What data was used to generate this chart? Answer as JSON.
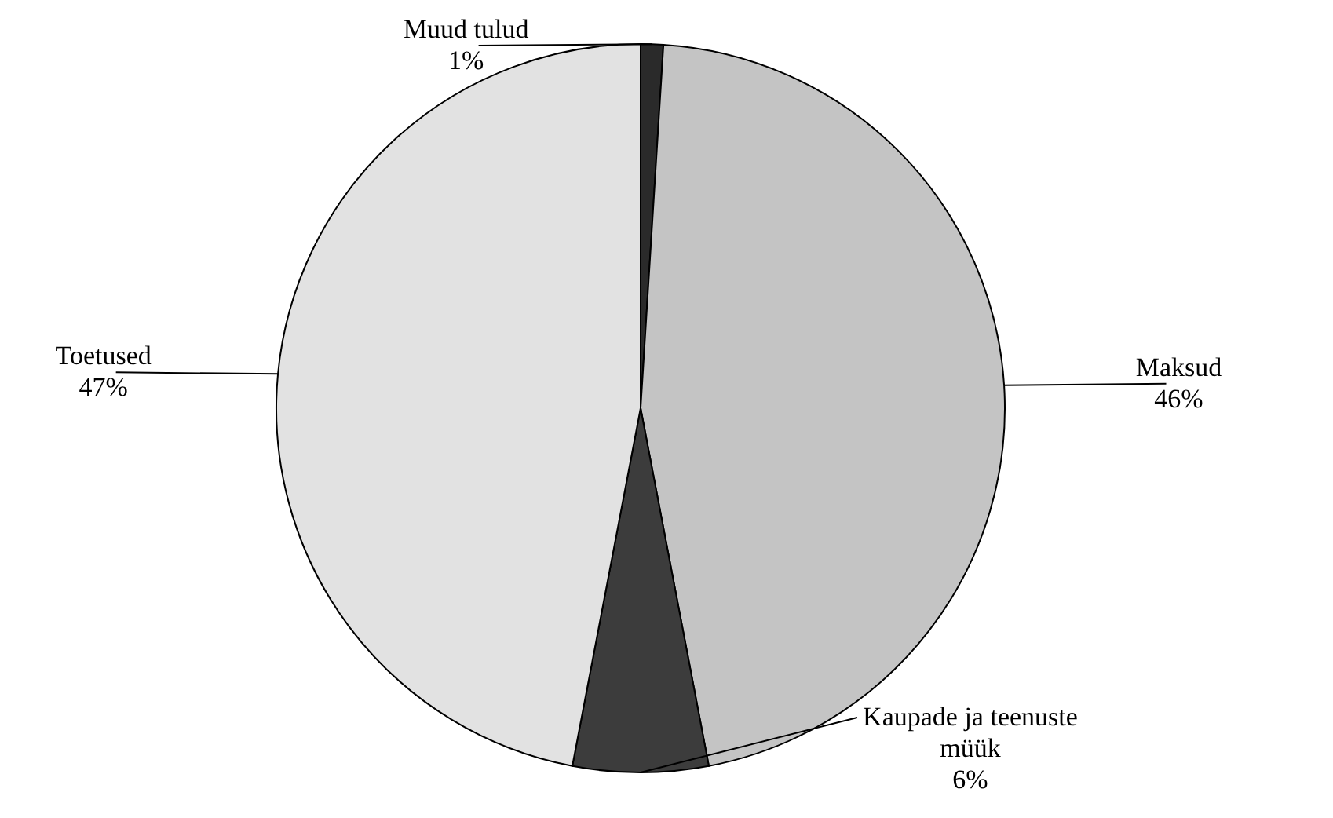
{
  "chart_data": {
    "type": "pie",
    "categories": [
      "Muud tulud",
      "Maksud",
      "Kaupade ja teenuste müük",
      "Toetused"
    ],
    "values": [
      1,
      46,
      6,
      47
    ],
    "colors": [
      "#2a2a2a",
      "#c4c4c4",
      "#3c3c3c",
      "#e2e2e2"
    ],
    "value_labels": [
      "1%",
      "46%",
      "6%",
      "47%"
    ]
  }
}
